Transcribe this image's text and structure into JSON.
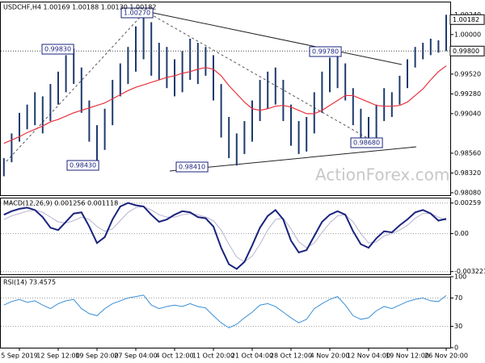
{
  "chart_data": [
    {
      "type": "ohlc",
      "title": "USDCHF,H4  1.00169 1.00188 1.00130 1.00182",
      "watermark": "ActionForex.com",
      "ylim": [
        0.9805,
        1.004
      ],
      "yticks": [
        {
          "value": 1.0024,
          "label": "1.00240"
        },
        {
          "value": 1.0,
          "label": "1.00000"
        },
        {
          "value": 0.9952,
          "label": "0.99520"
        },
        {
          "value": 0.9928,
          "label": "0.99280"
        },
        {
          "value": 0.9904,
          "label": "0.99040"
        },
        {
          "value": 0.9856,
          "label": "0.98560"
        },
        {
          "value": 0.9832,
          "label": "0.98320"
        },
        {
          "value": 0.9808,
          "label": "0.98080"
        }
      ],
      "color": "#1e3a6e",
      "high": [
        0.985,
        0.988,
        0.9905,
        0.9915,
        0.993,
        0.9925,
        0.994,
        0.9955,
        0.9975,
        0.9983,
        0.996,
        0.992,
        0.989,
        0.991,
        0.9945,
        0.9965,
        0.9985,
        1.001,
        1.0027,
        1.0015,
        0.999,
        0.9985,
        0.997,
        0.998,
        0.9995,
        0.999,
        0.9985,
        0.9975,
        0.994,
        0.99,
        0.988,
        0.9895,
        0.992,
        0.9945,
        0.9955,
        0.996,
        0.9945,
        0.9915,
        0.9895,
        0.99,
        0.993,
        0.9955,
        0.9972,
        0.9978,
        0.9965,
        0.9935,
        0.991,
        0.99,
        0.9915,
        0.9935,
        0.993,
        0.995,
        0.997,
        0.9985,
        0.999,
        0.9995,
        0.9993,
        1.0024
      ],
      "low": [
        0.9828,
        0.9845,
        0.987,
        0.9885,
        0.989,
        0.988,
        0.9895,
        0.9915,
        0.993,
        0.994,
        0.9905,
        0.987,
        0.9843,
        0.986,
        0.989,
        0.9925,
        0.994,
        0.9955,
        0.997,
        0.995,
        0.9945,
        0.9935,
        0.9925,
        0.993,
        0.9945,
        0.994,
        0.995,
        0.992,
        0.9875,
        0.985,
        0.9841,
        0.9855,
        0.987,
        0.9895,
        0.991,
        0.9915,
        0.9895,
        0.9865,
        0.9855,
        0.9858,
        0.988,
        0.9905,
        0.993,
        0.9935,
        0.992,
        0.989,
        0.9872,
        0.9868,
        0.9875,
        0.9895,
        0.99,
        0.9915,
        0.9935,
        0.996,
        0.997,
        0.9975,
        0.9978,
        0.998
      ],
      "series": [
        {
          "color": "#e8323c",
          "values": [
            0.9868,
            0.9872,
            0.9876,
            0.9881,
            0.9885,
            0.9889,
            0.9894,
            0.9897,
            0.9901,
            0.9905,
            0.9908,
            0.9911,
            0.9914,
            0.9917,
            0.9922,
            0.9927,
            0.9932,
            0.9936,
            0.9939,
            0.9942,
            0.9945,
            0.9948,
            0.995,
            0.9953,
            0.9955,
            0.9958,
            0.996,
            0.9958,
            0.995,
            0.9938,
            0.9928,
            0.9918,
            0.991,
            0.9908,
            0.991,
            0.9913,
            0.9914,
            0.9912,
            0.9908,
            0.9904,
            0.9904,
            0.9908,
            0.9914,
            0.992,
            0.9926,
            0.9926,
            0.9922,
            0.9918,
            0.9914,
            0.9913,
            0.9913,
            0.9914,
            0.9918,
            0.9926,
            0.9934,
            0.9945,
            0.9955,
            0.9962
          ]
        }
      ],
      "annotations": [
        "1.00270",
        "0.99830",
        "0.99780",
        "0.98430",
        "0.98410",
        "0.98680"
      ],
      "price_tags": [
        {
          "value": 1.00182,
          "label": "1.00182"
        },
        {
          "value": 0.998,
          "label": "0.99800"
        }
      ]
    },
    {
      "type": "line",
      "title": "MACD(12,26,9) 0.001256 0.001118",
      "grid": true,
      "ylim": [
        -0.00345,
        0.00305
      ],
      "yticks": [
        {
          "value": 0.00259,
          "label": "0.00259"
        },
        {
          "value": 0,
          "label": "0.00"
        },
        {
          "value": -0.003221,
          "label": "-0.003221"
        }
      ],
      "series": [
        {
          "color": "#b7b4cf",
          "width": 1,
          "values": [
            0.0012,
            0.0015,
            0.0017,
            0.0019,
            0.002,
            0.0018,
            0.0014,
            0.001,
            0.0009,
            0.0011,
            0.0014,
            0.0012,
            0.0006,
            0.0002,
            0.0004,
            0.0011,
            0.0018,
            0.0022,
            0.0023,
            0.002,
            0.0016,
            0.0014,
            0.0014,
            0.0016,
            0.0017,
            0.0016,
            0.0014,
            0.0011,
            0.0003,
            -0.0009,
            -0.002,
            -0.0024,
            -0.0019,
            -0.0009,
            0.0003,
            0.0012,
            0.0013,
            0.0004,
            -0.0007,
            -0.0012,
            -0.0008,
            0.0001,
            0.0009,
            0.0015,
            0.0016,
            0.001,
            0,
            -0.0008,
            -0.0007,
            -0.0002,
            0,
            0.0003,
            0.0007,
            0.0013,
            0.0017,
            0.0017,
            0.0014,
            0.001118
          ]
        },
        {
          "color": "#1a237e",
          "width": 2,
          "values": [
            0.0016,
            0.0019,
            0.0021,
            0.0022,
            0.002,
            0.0014,
            0.0005,
            0.0003,
            0.001,
            0.0017,
            0.0018,
            0.0006,
            -0.0008,
            -0.0003,
            0.0012,
            0.0023,
            0.0026,
            0.0024,
            0.0023,
            0.0016,
            0.001,
            0.0012,
            0.0016,
            0.0019,
            0.0018,
            0.0014,
            0.0013,
            0.0006,
            -0.0012,
            -0.0026,
            -0.003,
            -0.0024,
            -0.001,
            0.0005,
            0.0015,
            0.002,
            0.0012,
            -0.0006,
            -0.0016,
            -0.0014,
            -0.0002,
            0.001,
            0.0016,
            0.0019,
            0.0016,
            0.0002,
            -0.0009,
            -0.0012,
            -0.0004,
            0.0002,
            0.0001,
            0.0007,
            0.0012,
            0.0018,
            0.002,
            0.0017,
            0.0011,
            0.001256
          ]
        }
      ]
    },
    {
      "type": "line",
      "title": "RSI(14) 73.4575",
      "grid": true,
      "ylim": [
        0,
        100
      ],
      "yticks": [
        100,
        70,
        30,
        0
      ],
      "series": [
        {
          "color": "#3a8fd6",
          "width": 1,
          "values": [
            60,
            65,
            68,
            64,
            66,
            60,
            55,
            62,
            66,
            68,
            55,
            48,
            45,
            55,
            62,
            66,
            70,
            72,
            74,
            60,
            55,
            58,
            60,
            58,
            62,
            58,
            56,
            45,
            35,
            28,
            33,
            42,
            50,
            60,
            62,
            58,
            50,
            42,
            35,
            40,
            55,
            62,
            68,
            72,
            60,
            45,
            40,
            42,
            52,
            58,
            55,
            60,
            65,
            68,
            70,
            66,
            65,
            73.4575
          ]
        }
      ],
      "categories": [
        null,
        null,
        "5 Sep 2019",
        null,
        null,
        null,
        null,
        "12 Sep 12:00",
        null,
        null,
        null,
        null,
        "19 Sep 20:00",
        null,
        null,
        null,
        null,
        "27 Sep 04:00",
        null,
        null,
        null,
        null,
        "4 Oct 12:00",
        null,
        null,
        null,
        null,
        "11 Oct 20:00",
        null,
        null,
        null,
        null,
        "21 Oct 04:00",
        null,
        null,
        null,
        null,
        "28 Oct 12:00",
        null,
        null,
        null,
        null,
        "4 Nov 20:00",
        null,
        null,
        null,
        null,
        "12 Nov 04:00",
        null,
        null,
        null,
        null,
        "19 Nov 12:00",
        null,
        null,
        null,
        null,
        "26 Nov 20:00"
      ]
    }
  ]
}
